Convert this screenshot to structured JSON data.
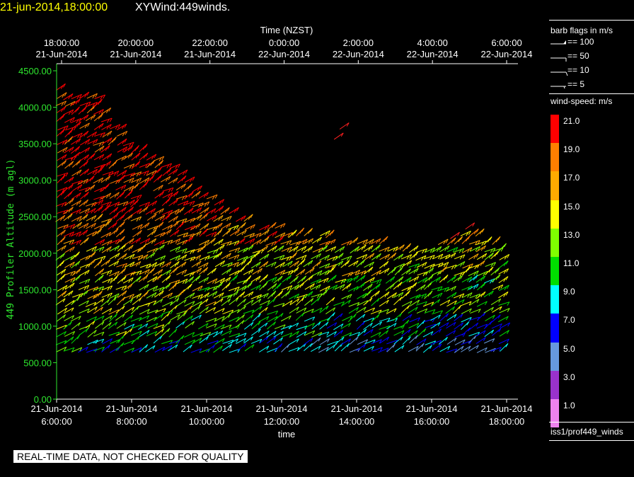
{
  "header": {
    "time": "21-jun-2014,18:00:00",
    "product": "XYWind:449winds."
  },
  "footer": {
    "note": "REAL-TIME DATA, NOT CHECKED FOR QUALITY"
  },
  "legend": {
    "barb_title": "barb flags in m/s",
    "barbs": [
      {
        "label": "== 100",
        "value": 100
      },
      {
        "label": "== 50",
        "value": 50
      },
      {
        "label": "== 10",
        "value": 10
      },
      {
        "label": "== 5",
        "value": 5
      }
    ],
    "speed_title": "wind-speed: m/s",
    "speed_scale": [
      {
        "label": "21.0",
        "color": "#ff0000"
      },
      {
        "label": "19.0",
        "color": "#ff7f00"
      },
      {
        "label": "17.0",
        "color": "#ffaa00"
      },
      {
        "label": "15.0",
        "color": "#ffff00"
      },
      {
        "label": "13.0",
        "color": "#7fff00"
      },
      {
        "label": "11.0",
        "color": "#00dd00"
      },
      {
        "label": "9.0",
        "color": "#00ffff"
      },
      {
        "label": "7.0",
        "color": "#0000ff"
      },
      {
        "label": "5.0",
        "color": "#6699dd"
      },
      {
        "label": "3.0",
        "color": "#9932cc"
      },
      {
        "label": "1.0",
        "color": "#ee82ee"
      }
    ],
    "source": "iss1/prof449_winds"
  },
  "chart_data": {
    "type": "scatter",
    "title": "",
    "xlabel": "time",
    "x2label": "Time (NZST)",
    "ylabel": "449 Profiler Altitude (m agl)",
    "xlim": [
      "21-Jun-2014 6:00:00",
      "21-Jun-2014 18:00:00"
    ],
    "ylim": [
      0,
      4600
    ],
    "x_ticks": [
      {
        "date": "21-Jun-2014",
        "time": "6:00:00"
      },
      {
        "date": "21-Jun-2014",
        "time": "8:00:00"
      },
      {
        "date": "21-Jun-2014",
        "time": "10:00:00"
      },
      {
        "date": "21-Jun-2014",
        "time": "12:00:00"
      },
      {
        "date": "21-Jun-2014",
        "time": "14:00:00"
      },
      {
        "date": "21-Jun-2014",
        "time": "16:00:00"
      },
      {
        "date": "21-Jun-2014",
        "time": "18:00:00"
      }
    ],
    "x2_ticks": [
      {
        "time": "18:00:00",
        "date": "21-Jun-2014"
      },
      {
        "time": "20:00:00",
        "date": "21-Jun-2014"
      },
      {
        "time": "22:00:00",
        "date": "21-Jun-2014"
      },
      {
        "time": "0:00:00",
        "date": "22-Jun-2014"
      },
      {
        "time": "2:00:00",
        "date": "22-Jun-2014"
      },
      {
        "time": "4:00:00",
        "date": "22-Jun-2014"
      },
      {
        "time": "6:00:00",
        "date": "22-Jun-2014"
      }
    ],
    "y_ticks": [
      "0.00",
      "500.00",
      "1000.00",
      "1500.00",
      "2000.00",
      "2500.00",
      "3000.00",
      "3500.00",
      "4000.00",
      "4500.00"
    ],
    "y_tick_values": [
      0,
      500,
      1000,
      1500,
      2000,
      2500,
      3000,
      3500,
      4000,
      4500
    ],
    "grid": false,
    "series": [
      {
        "values": [
          {
            "hour": 6.0,
            "top_altitude": 4250
          },
          {
            "hour": 7.0,
            "top_altitude": 4150
          },
          {
            "hour": 8.0,
            "top_altitude": 3450
          },
          {
            "hour": 9.0,
            "top_altitude": 3200
          },
          {
            "hour": 10.0,
            "top_altitude": 2750
          },
          {
            "hour": 11.0,
            "top_altitude": 2450
          },
          {
            "hour": 12.0,
            "top_altitude": 2300
          },
          {
            "hour": 13.0,
            "top_altitude": 2250
          },
          {
            "hour": 14.0,
            "top_altitude": 2150
          },
          {
            "hour": 15.0,
            "top_altitude": 2100
          },
          {
            "hour": 16.0,
            "top_altitude": 2100
          },
          {
            "hour": 17.0,
            "top_altitude": 2300
          },
          {
            "hour": 18.0,
            "top_altitude": 2050
          }
        ]
      }
    ]
  }
}
